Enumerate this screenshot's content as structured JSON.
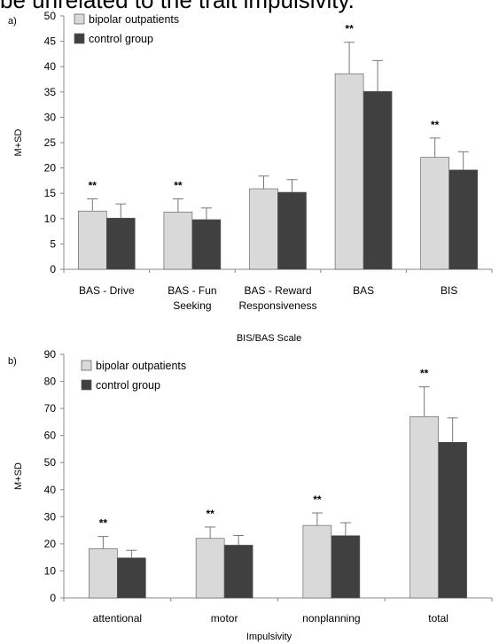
{
  "caption_fragment": "be unrelated to the trait impulsivity.",
  "colors": {
    "bipolar": "#d9d9d9",
    "control": "#404040",
    "axis": "#888888",
    "error_bar": "#777777"
  },
  "chart_data": [
    {
      "type": "bar",
      "panel_label": "a)",
      "title": "",
      "xlabel": "BIS/BAS Scale",
      "ylabel": "M+SD",
      "ylim": [
        0,
        50
      ],
      "ytick_step": 5,
      "grid": false,
      "legend_position": "top-left",
      "categories": [
        "BAS - Drive",
        "BAS - Fun Seeking",
        "BAS - Reward Responsiveness",
        "BAS",
        "BIS"
      ],
      "category_label_lines": [
        [
          "BAS - Drive"
        ],
        [
          "BAS - Fun",
          "Seeking"
        ],
        [
          "BAS - Reward",
          "Responsiveness"
        ],
        [
          "BAS"
        ],
        [
          "BIS"
        ]
      ],
      "significance": [
        "**",
        "**",
        "",
        "**",
        "**"
      ],
      "series": [
        {
          "name": "bipolar outpatients",
          "values": [
            11.5,
            11.3,
            15.9,
            38.6,
            22.1
          ],
          "sd": [
            2.4,
            2.6,
            2.5,
            6.2,
            3.8
          ]
        },
        {
          "name": "control group",
          "values": [
            10.1,
            9.8,
            15.2,
            35.1,
            19.6
          ],
          "sd": [
            2.8,
            2.3,
            2.5,
            6.1,
            3.6
          ]
        }
      ]
    },
    {
      "type": "bar",
      "panel_label": "b)",
      "title": "",
      "xlabel": "Impulsivity",
      "ylabel": "M+SD",
      "ylim": [
        0,
        90
      ],
      "ytick_step": 10,
      "grid": false,
      "legend_position": "top-left",
      "categories": [
        "attentional",
        "motor",
        "nonplanning",
        "total"
      ],
      "category_label_lines": [
        [
          "attentional"
        ],
        [
          "motor"
        ],
        [
          "nonplanning"
        ],
        [
          "total"
        ]
      ],
      "significance": [
        "**",
        "**",
        "**",
        "**"
      ],
      "series": [
        {
          "name": "bipolar outpatients",
          "values": [
            18.2,
            22.0,
            26.8,
            67.0
          ],
          "sd": [
            4.5,
            4.2,
            4.6,
            11.0
          ]
        },
        {
          "name": "control group",
          "values": [
            14.8,
            19.5,
            23.0,
            57.5
          ],
          "sd": [
            2.8,
            3.6,
            4.8,
            9.0
          ]
        }
      ]
    }
  ]
}
